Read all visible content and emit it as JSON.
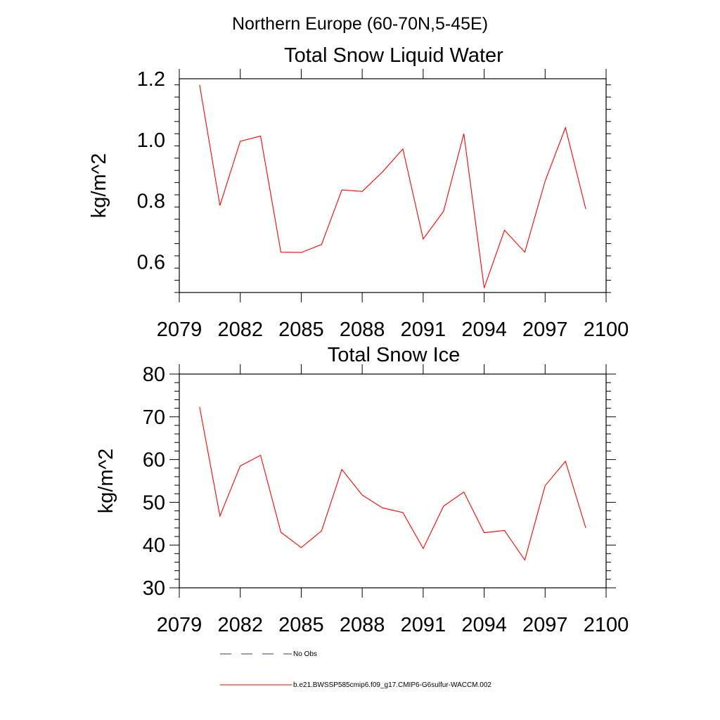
{
  "page_title": "Northern Europe (60-70N,5-45E)",
  "colors": {
    "series": "#ff0000",
    "axis": "#000000",
    "obs": "#3a3a6e"
  },
  "chart_data": [
    {
      "type": "line",
      "title": "Total Snow Liquid Water",
      "xlabel": "",
      "ylabel": "kg/m^2",
      "xlim": [
        2079,
        2100
      ],
      "ylim": [
        0.5,
        1.2
      ],
      "xticks": [
        2079,
        2082,
        2085,
        2088,
        2091,
        2094,
        2097,
        2100
      ],
      "xtick_labels": [
        "2079",
        "2082",
        "2085",
        "2088",
        "2091",
        "2094",
        "2097",
        "2100"
      ],
      "yticks": [
        0.6,
        0.8,
        1.0,
        1.2
      ],
      "ytick_labels": [
        "0.6",
        "0.8",
        "1.0",
        "1.2"
      ],
      "grid": false,
      "x": [
        2080,
        2081,
        2082,
        2083,
        2084,
        2085,
        2086,
        2087,
        2088,
        2089,
        2090,
        2091,
        2092,
        2093,
        2094,
        2095,
        2096,
        2097,
        2098,
        2099
      ],
      "series": [
        {
          "name": "b.e21.BWSSP585cmip6.f09_g17.CMIP6-G6sulfur-WACCM.002",
          "values": [
            1.18,
            0.785,
            0.995,
            1.012,
            0.632,
            0.631,
            0.657,
            0.836,
            0.831,
            0.895,
            0.97,
            0.675,
            0.766,
            1.02,
            0.515,
            0.704,
            0.632,
            0.865,
            1.04,
            0.773
          ]
        }
      ]
    },
    {
      "type": "line",
      "title": "Total Snow Ice",
      "xlabel": "",
      "ylabel": "kg/m^2",
      "xlim": [
        2079,
        2100
      ],
      "ylim": [
        30,
        80
      ],
      "xticks": [
        2079,
        2082,
        2085,
        2088,
        2091,
        2094,
        2097,
        2100
      ],
      "xtick_labels": [
        "2079",
        "2082",
        "2085",
        "2088",
        "2091",
        "2094",
        "2097",
        "2100"
      ],
      "yticks": [
        30,
        40,
        50,
        60,
        70,
        80
      ],
      "ytick_labels": [
        "30",
        "40",
        "50",
        "60",
        "70",
        "80"
      ],
      "grid": false,
      "x": [
        2080,
        2081,
        2082,
        2083,
        2084,
        2085,
        2086,
        2087,
        2088,
        2089,
        2090,
        2091,
        2092,
        2093,
        2094,
        2095,
        2096,
        2097,
        2098,
        2099
      ],
      "series": [
        {
          "name": "b.e21.BWSSP585cmip6.f09_g17.CMIP6-G6sulfur-WACCM.002",
          "values": [
            72.3,
            46.8,
            58.5,
            61.0,
            43.0,
            39.4,
            43.3,
            57.7,
            51.7,
            48.7,
            47.6,
            39.2,
            49.1,
            52.4,
            42.9,
            43.4,
            36.5,
            53.9,
            59.6,
            44.0
          ]
        }
      ]
    }
  ],
  "legend": [
    {
      "label": "No Obs",
      "style": "dashed"
    },
    {
      "label": "b.e21.BWSSP585cmip6.f09_g17.CMIP6-G6sulfur-WACCM.002",
      "style": "solid"
    }
  ]
}
